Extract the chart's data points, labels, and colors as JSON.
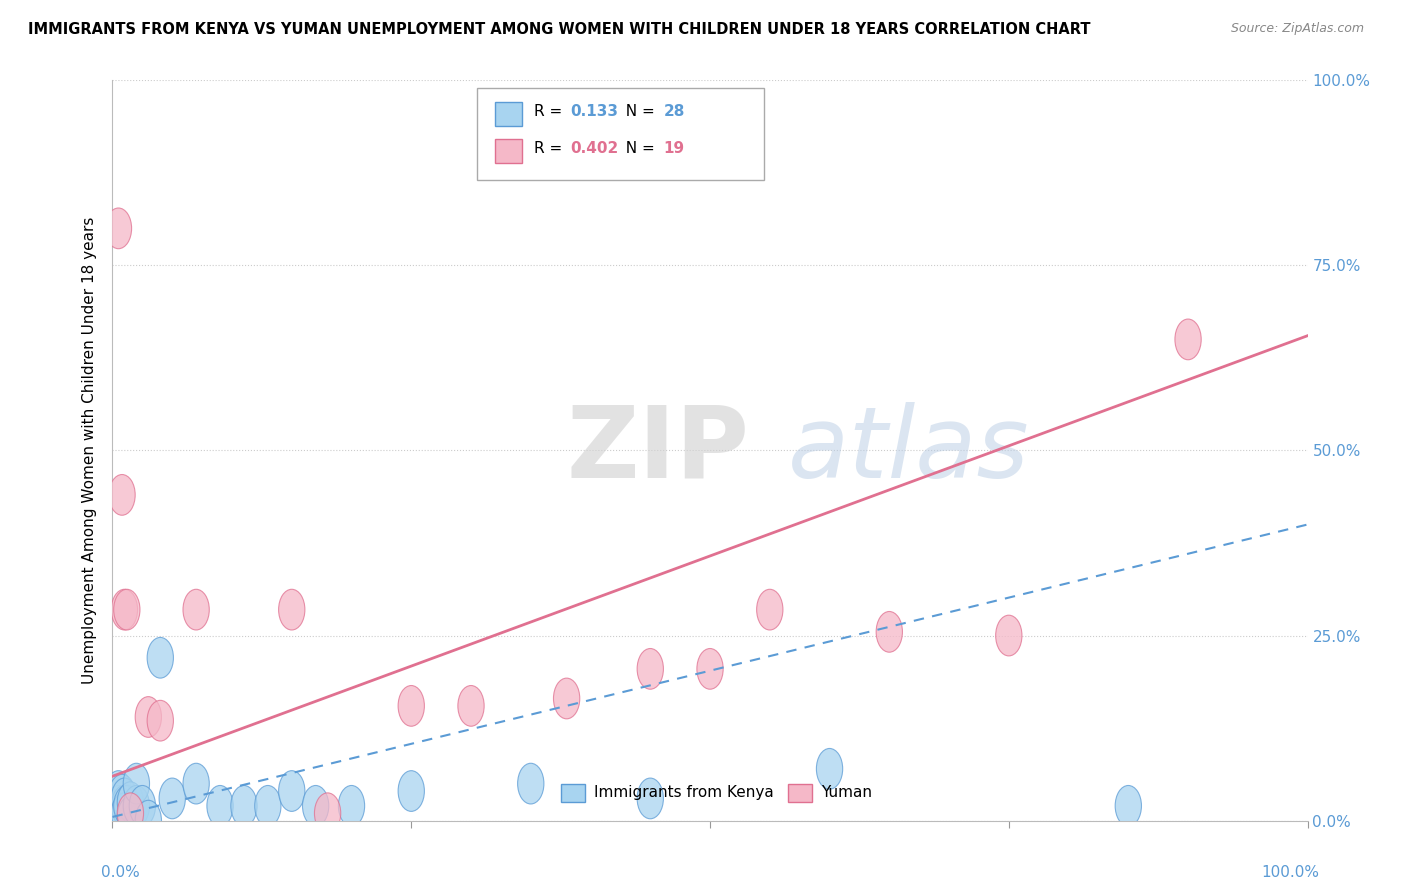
{
  "title": "IMMIGRANTS FROM KENYA VS YUMAN UNEMPLOYMENT AMONG WOMEN WITH CHILDREN UNDER 18 YEARS CORRELATION CHART",
  "source": "Source: ZipAtlas.com",
  "ylabel": "Unemployment Among Women with Children Under 18 years",
  "ylabel_ticks": [
    "0.0%",
    "25.0%",
    "50.0%",
    "75.0%",
    "100.0%"
  ],
  "ylabel_tick_vals": [
    0.0,
    0.25,
    0.5,
    0.75,
    1.0
  ],
  "xlim": [
    0,
    1.0
  ],
  "ylim": [
    0,
    1.0
  ],
  "kenya_color": "#a8d4f0",
  "yuman_color": "#f5b8c8",
  "kenya_color_dark": "#5b9bd5",
  "yuman_color_dark": "#e07090",
  "kenya_scatter": [
    [
      0.005,
      0.04
    ],
    [
      0.005,
      0.02
    ],
    [
      0.008,
      0.035
    ],
    [
      0.008,
      0.01
    ],
    [
      0.01,
      0.02
    ],
    [
      0.01,
      0.03
    ],
    [
      0.01,
      0.01
    ],
    [
      0.012,
      0.02
    ],
    [
      0.015,
      0.025
    ],
    [
      0.015,
      0.005
    ],
    [
      0.02,
      0.02
    ],
    [
      0.02,
      0.05
    ],
    [
      0.025,
      0.02
    ],
    [
      0.03,
      0.0
    ],
    [
      0.04,
      0.22
    ],
    [
      0.05,
      0.03
    ],
    [
      0.07,
      0.05
    ],
    [
      0.09,
      0.02
    ],
    [
      0.11,
      0.02
    ],
    [
      0.13,
      0.02
    ],
    [
      0.15,
      0.04
    ],
    [
      0.17,
      0.02
    ],
    [
      0.2,
      0.02
    ],
    [
      0.25,
      0.04
    ],
    [
      0.35,
      0.05
    ],
    [
      0.45,
      0.03
    ],
    [
      0.6,
      0.07
    ],
    [
      0.85,
      0.02
    ]
  ],
  "yuman_scatter": [
    [
      0.005,
      0.8
    ],
    [
      0.008,
      0.44
    ],
    [
      0.01,
      0.285
    ],
    [
      0.012,
      0.285
    ],
    [
      0.015,
      0.01
    ],
    [
      0.03,
      0.14
    ],
    [
      0.04,
      0.135
    ],
    [
      0.07,
      0.285
    ],
    [
      0.15,
      0.285
    ],
    [
      0.18,
      0.01
    ],
    [
      0.25,
      0.155
    ],
    [
      0.3,
      0.155
    ],
    [
      0.38,
      0.165
    ],
    [
      0.45,
      0.205
    ],
    [
      0.5,
      0.205
    ],
    [
      0.55,
      0.285
    ],
    [
      0.65,
      0.255
    ],
    [
      0.75,
      0.25
    ],
    [
      0.9,
      0.65
    ]
  ],
  "kenya_trendline": {
    "x": [
      0.0,
      1.0
    ],
    "y": [
      0.005,
      0.4
    ]
  },
  "yuman_trendline": {
    "x": [
      0.0,
      1.0
    ],
    "y": [
      0.06,
      0.655
    ]
  },
  "watermark_zip": "ZIP",
  "watermark_atlas": "atlas",
  "background_color": "#ffffff",
  "grid_color": "#cccccc",
  "tick_color": "#5b9bd5",
  "legend_R1": "0.133",
  "legend_N1": "28",
  "legend_R2": "0.402",
  "legend_N2": "19"
}
